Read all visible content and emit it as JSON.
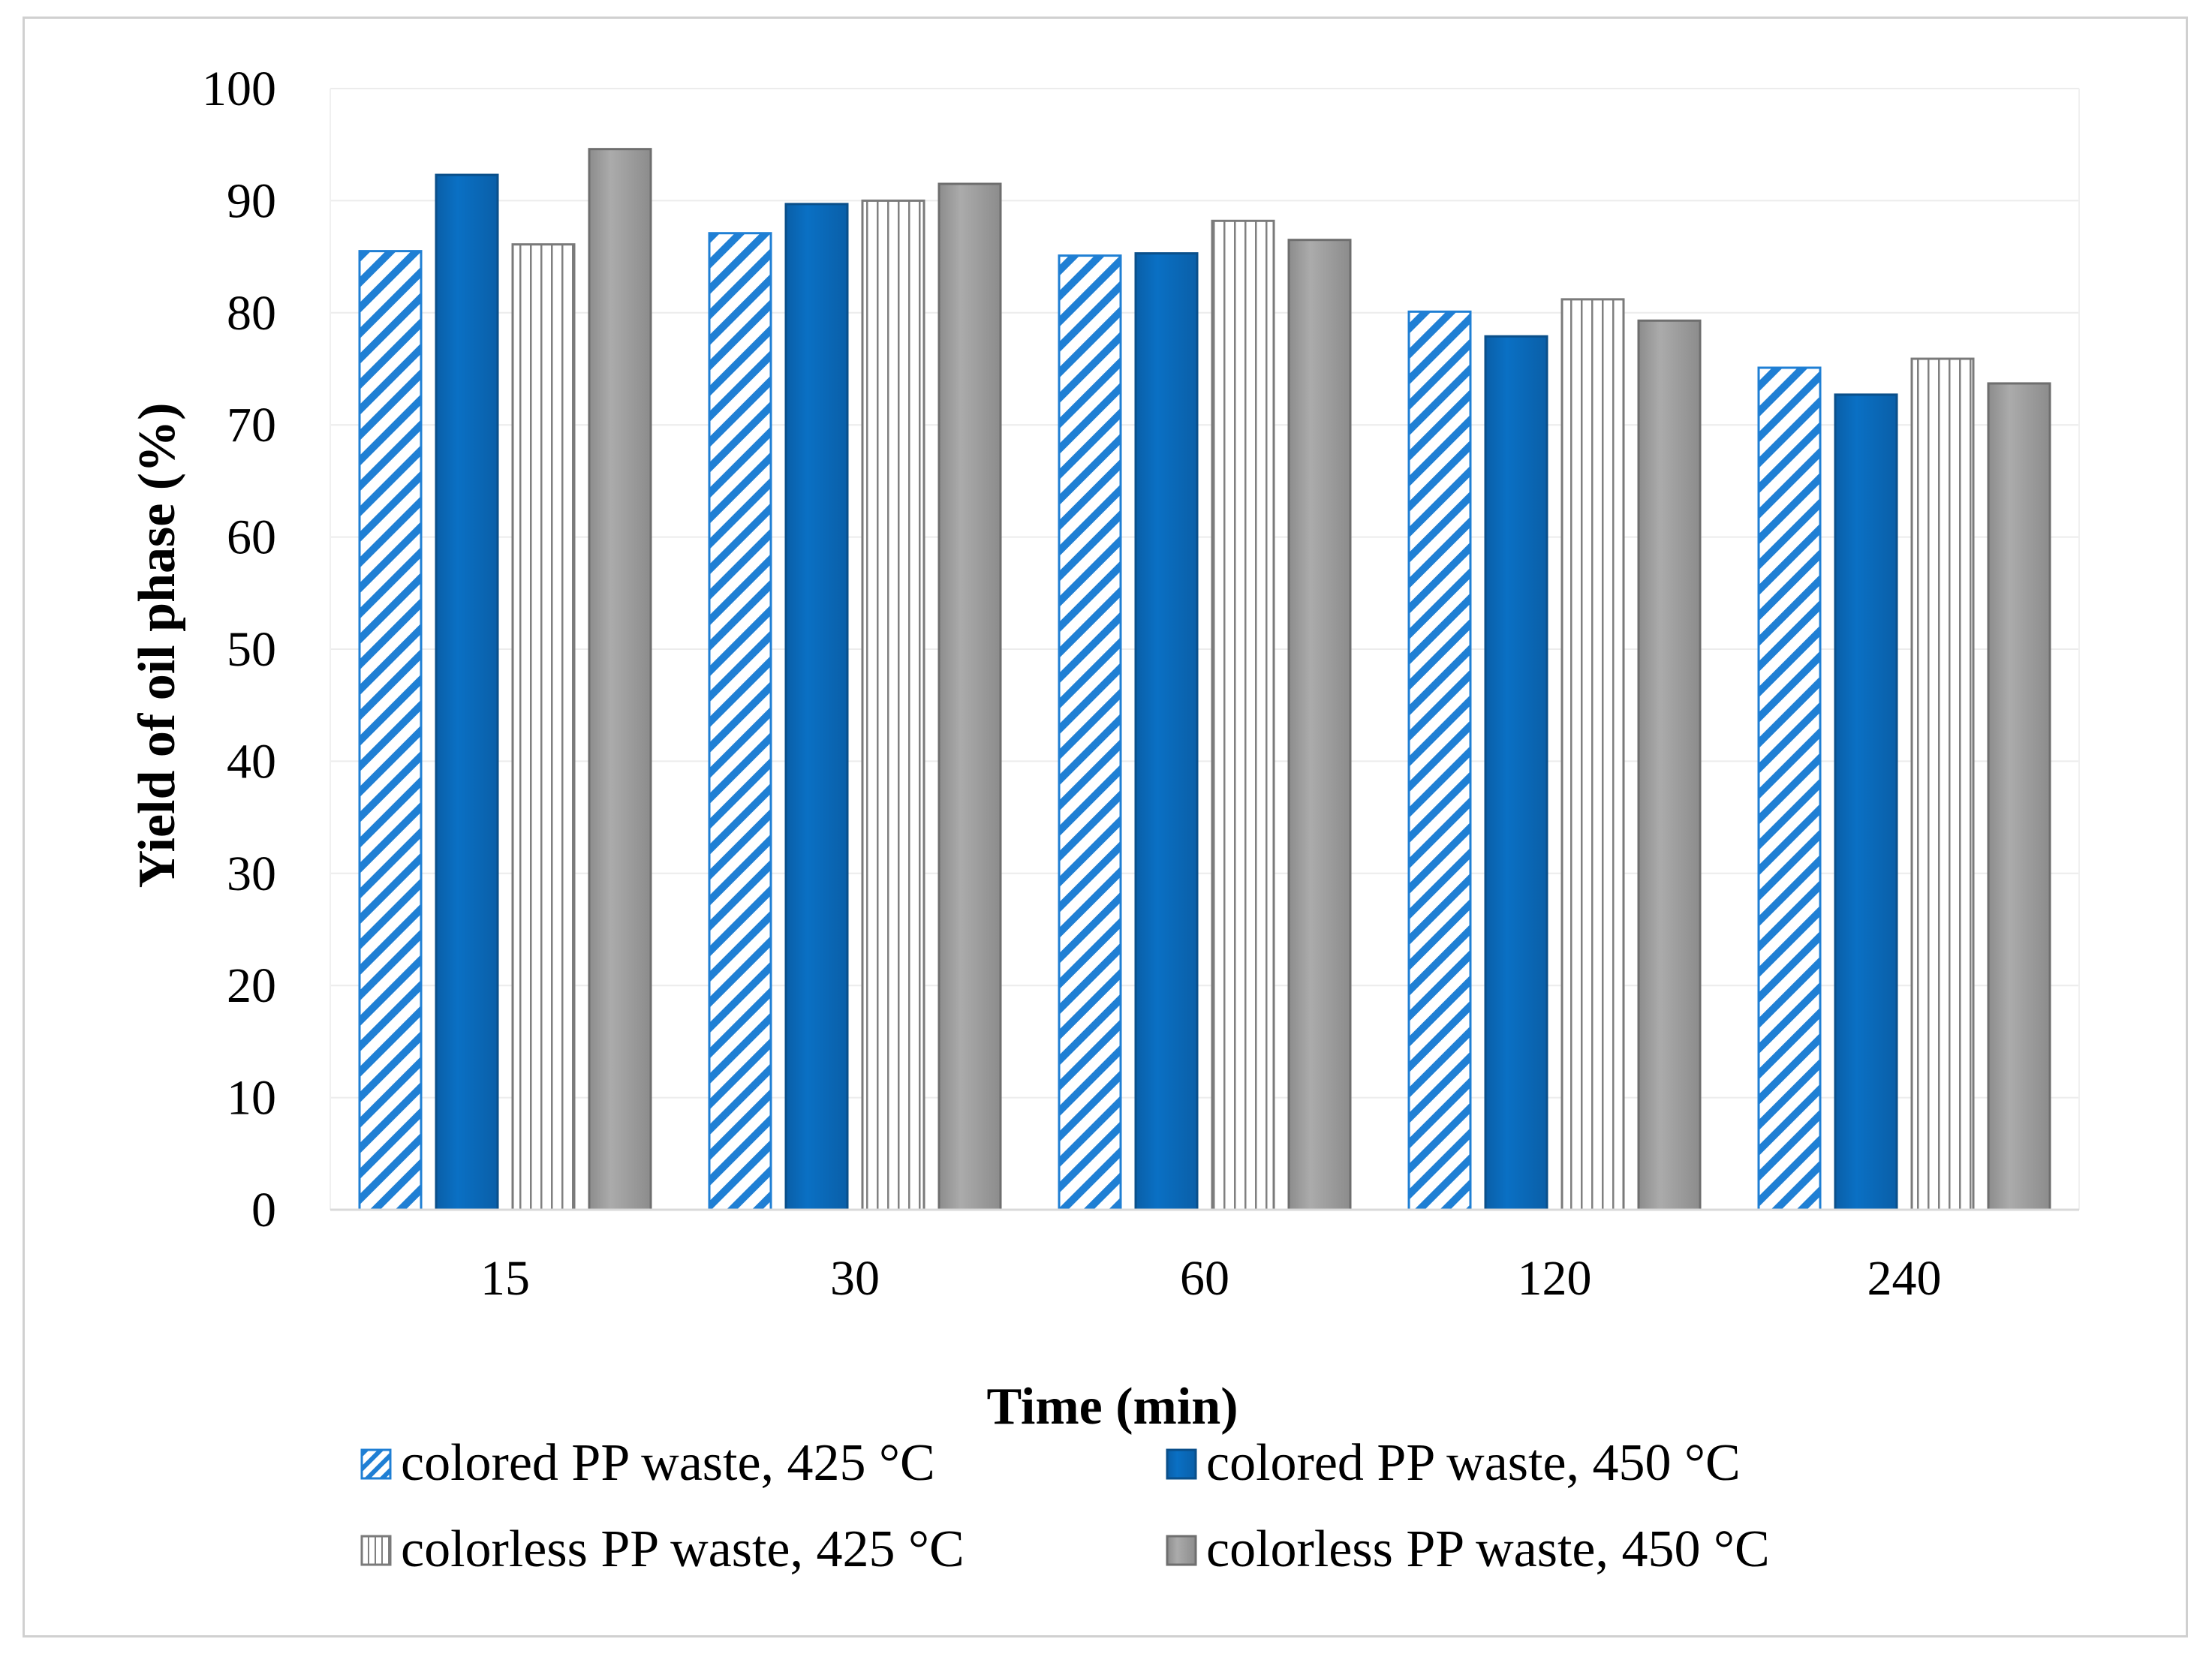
{
  "chart_data": {
    "type": "bar",
    "title": "",
    "xlabel": "Time (min)",
    "ylabel": "Yield of oil phase (%)",
    "ylim": [
      0,
      100
    ],
    "yticks": [
      "0",
      "10",
      "20",
      "30",
      "40",
      "50",
      "60",
      "70",
      "80",
      "90",
      "100"
    ],
    "categories": [
      "15",
      "30",
      "60",
      "120",
      "240"
    ],
    "grid": true,
    "legend_position": "bottom",
    "series": [
      {
        "name": "colored PP waste, 425 °C",
        "pattern": "diagonal",
        "color": "#1f7fd4",
        "values": [
          85.5,
          87.1,
          85.1,
          80.1,
          75.1
        ]
      },
      {
        "name": "colored PP waste, 450 °C",
        "pattern": "solid",
        "color": "#0a6fc2",
        "values": [
          92.3,
          89.7,
          85.3,
          77.9,
          72.7
        ]
      },
      {
        "name": "colorless PP waste, 425 °C",
        "pattern": "vertical",
        "color": "#ffffff",
        "values": [
          86.1,
          90.0,
          88.2,
          81.2,
          75.9
        ]
      },
      {
        "name": "colorless PP waste, 450 °C",
        "pattern": "solid",
        "color": "#a6a6a6",
        "values": [
          94.6,
          91.5,
          86.5,
          79.3,
          73.7
        ]
      }
    ]
  }
}
